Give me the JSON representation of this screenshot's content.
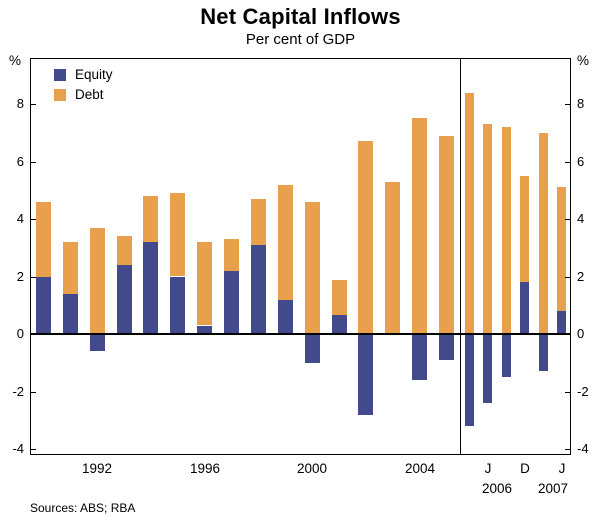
{
  "title": "Net Capital Inflows",
  "subtitle": "Per cent of GDP",
  "source": "Sources: ABS; RBA",
  "axis": {
    "unit_left": "%",
    "unit_right": "%"
  },
  "chart_data": {
    "type": "bar",
    "stacked": true,
    "title": "Net Capital Inflows",
    "subtitle": "Per cent of GDP",
    "ylabel": "%",
    "ylim": [
      -4.2,
      9.6
    ],
    "yticks": [
      8,
      6,
      4,
      2,
      0,
      -2,
      -4
    ],
    "grid": false,
    "legend": {
      "position": "top-left-inside",
      "items": [
        {
          "name": "Equity",
          "color": "#424a8c"
        },
        {
          "name": "Debt",
          "color": "#e9a04c"
        }
      ]
    },
    "annual": {
      "categories": [
        1990,
        1991,
        1992,
        1993,
        1994,
        1995,
        1996,
        1997,
        1998,
        1999,
        2000,
        2001,
        2002,
        2003,
        2004,
        2005
      ],
      "series": [
        {
          "name": "Equity",
          "values": [
            2.0,
            1.4,
            -0.6,
            2.4,
            3.2,
            2.0,
            0.3,
            2.2,
            3.1,
            1.2,
            -1.0,
            0.7,
            -2.8,
            0.0,
            -1.6,
            -0.9
          ]
        },
        {
          "name": "Debt",
          "values": [
            2.6,
            1.8,
            3.7,
            1.0,
            1.6,
            2.9,
            2.9,
            1.1,
            1.6,
            4.0,
            4.6,
            1.2,
            6.7,
            5.3,
            7.5,
            6.9
          ]
        }
      ],
      "x_tick_labels": [
        {
          "label": "1992",
          "index": 2
        },
        {
          "label": "1996",
          "index": 6
        },
        {
          "label": "2000",
          "index": 10
        },
        {
          "label": "2004",
          "index": 14
        }
      ]
    },
    "quarterly": {
      "categories": [
        "2006 M",
        "2006 J",
        "2006 S",
        "2006 D",
        "2007 M",
        "2007 J"
      ],
      "series": [
        {
          "name": "Equity",
          "values": [
            -3.2,
            -2.4,
            -1.5,
            1.8,
            -1.3,
            0.8
          ]
        },
        {
          "name": "Debt",
          "values": [
            8.4,
            7.3,
            7.2,
            3.7,
            7.0,
            4.3
          ]
        }
      ],
      "x_tick_labels": [
        {
          "label": "J",
          "index": 1
        },
        {
          "label": "D",
          "index": 3
        },
        {
          "label": "J",
          "index": 5
        }
      ],
      "group_labels": [
        {
          "label": "2006",
          "span": [
            0,
            3
          ]
        },
        {
          "label": "2007",
          "span": [
            4,
            5
          ]
        }
      ]
    }
  }
}
